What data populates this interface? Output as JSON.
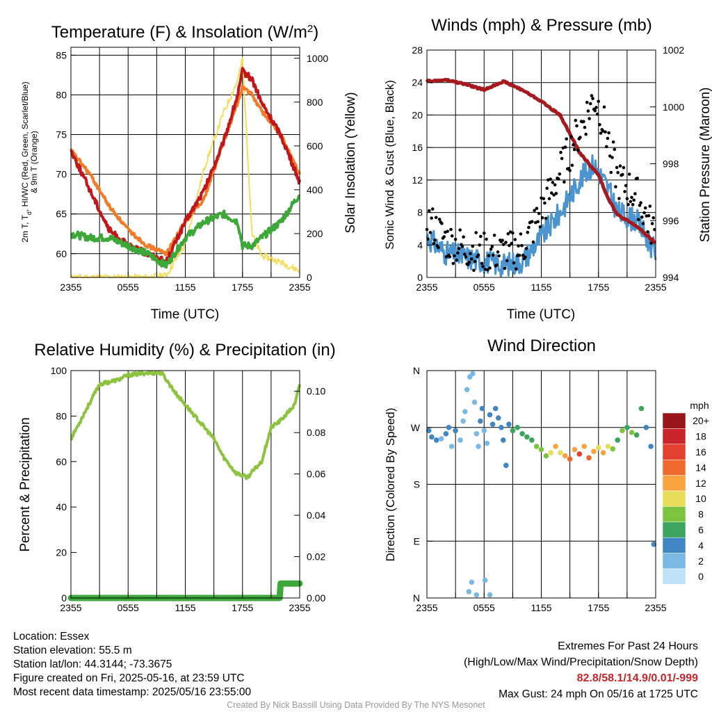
{
  "colors": {
    "red": "#c0171b",
    "dark_red": "#a01018",
    "orange": "#f07b28",
    "green": "#3da83a",
    "yellow": "#f5dc5a",
    "blue": "#4a94d0",
    "maroon": "#a5191f",
    "black": "#000000",
    "humidity": "#8cc43f",
    "precip": "#3da83a"
  },
  "charts": {
    "temperature": {
      "title": "Temperature (F) & Insolation (W/m²)",
      "xlabel": "Time (UTC)",
      "ylabel_left": "2m T, Td, HI/WC (Red, Green, Scarlet/Blue) & 9m T (Orange)",
      "ylabel_left_line1": "2m T, T",
      "ylabel_left_sub": "d",
      "ylabel_left_line1_rest": ", HI/WC (Red, Green, Scarlet/Blue)",
      "ylabel_left_line2": "& 9m T (Orange)",
      "ylabel_right": "Solar Insolation (Yellow)"
    },
    "winds": {
      "title": "Winds (mph) & Pressure (mb)",
      "xlabel": "Time (UTC)",
      "ylabel_left": "Sonic Wind & Gust (Blue, Black)",
      "ylabel_right": "Station Pressure (Maroon)"
    },
    "humidity": {
      "title": "Relative Humidity (%) & Precipitation (in)",
      "ylabel_left": "Percent & Precipitation"
    },
    "direction": {
      "title": "Wind Direction",
      "ylabel_left": "Direction (Colored By Speed)",
      "legend_title": "mph"
    }
  },
  "chart_data": [
    {
      "type": "line",
      "title": "Temperature (F) & Insolation (W/m2)",
      "xlabel": "Time (UTC)",
      "ylabel": "2m T, Td, HI/WC (Red, Green, Scarlet/Blue) & 9m T (Orange)",
      "y2label": "Solar Insolation (Yellow)",
      "x_hours": [
        0,
        2,
        4,
        6,
        8,
        10,
        12,
        14,
        16,
        17.5,
        18,
        19,
        20,
        22,
        24
      ],
      "x_ticks": [
        "2355",
        "0555",
        "1155",
        "1755",
        "2355"
      ],
      "ylim": [
        57,
        86
      ],
      "y_ticks": [
        60,
        65,
        70,
        75,
        80,
        85
      ],
      "y2lim": [
        0,
        1050
      ],
      "y2_ticks": [
        0,
        200,
        400,
        600,
        800,
        1000
      ],
      "series": [
        {
          "name": "2m T (Red)",
          "axis": "left",
          "color": "#c0171b",
          "values": [
            73,
            68,
            63,
            61,
            60,
            59,
            64,
            68,
            74,
            80,
            83,
            82,
            79,
            75,
            69
          ]
        },
        {
          "name": "9m T (Orange)",
          "axis": "left",
          "color": "#f07b28",
          "values": [
            73,
            70,
            66,
            63,
            61,
            60,
            64,
            67,
            74,
            79,
            81,
            80,
            78,
            75,
            70
          ]
        },
        {
          "name": "2m Td (Green)",
          "axis": "left",
          "color": "#3da83a",
          "values": [
            62.5,
            62,
            62,
            61,
            60,
            58.5,
            62,
            64,
            65,
            64,
            61,
            61,
            62,
            64,
            67.5
          ]
        },
        {
          "name": "Solar Insolation (Yellow)",
          "axis": "right",
          "color": "#f5dc5a",
          "values": [
            0,
            0,
            0,
            0,
            0,
            10,
            150,
            500,
            750,
            900,
            1000,
            200,
            100,
            70,
            30
          ]
        }
      ]
    },
    {
      "type": "line",
      "title": "Winds (mph) & Pressure (mb)",
      "xlabel": "Time (UTC)",
      "ylabel": "Sonic Wind & Gust (Blue, Black)",
      "y2label": "Station Pressure (Maroon)",
      "x_hours": [
        0,
        2,
        4,
        6,
        8,
        10,
        12,
        14,
        16,
        17.5,
        18,
        19,
        20,
        22,
        24
      ],
      "x_ticks": [
        "2355",
        "0555",
        "1155",
        "1755",
        "2355"
      ],
      "ylim": [
        0,
        28
      ],
      "y_ticks": [
        0,
        4,
        8,
        12,
        16,
        20,
        24,
        28
      ],
      "y2lim": [
        994,
        1002
      ],
      "y2_ticks": [
        994,
        996,
        998,
        1000,
        1002
      ],
      "series": [
        {
          "name": "Sonic Wind (Blue)",
          "axis": "left",
          "color": "#4a94d0",
          "values": [
            5,
            3,
            2.5,
            2,
            1.5,
            2,
            5,
            8,
            12,
            14,
            13,
            11,
            8,
            7,
            3
          ]
        },
        {
          "name": "Gust (Black)",
          "axis": "left",
          "color": "#000000",
          "markers": true,
          "values": [
            7,
            4.5,
            3.5,
            3,
            3,
            3.5,
            8,
            13,
            18,
            22,
            21,
            17,
            12,
            10,
            5
          ]
        },
        {
          "name": "Station Pressure (Maroon)",
          "axis": "right",
          "color": "#a5191f",
          "values": [
            1000.9,
            1000.95,
            1000.8,
            1000.6,
            1000.9,
            1000.6,
            1000.2,
            999.7,
            998.4,
            997.8,
            997.6,
            996.8,
            996.2,
            995.8,
            995.2
          ]
        }
      ]
    },
    {
      "type": "line",
      "title": "Relative Humidity (%) & Precipitation (in)",
      "ylabel": "Percent & Precipitation",
      "x_hours": [
        0,
        1,
        3,
        5,
        6,
        8,
        9.5,
        11,
        13,
        15,
        16,
        17.3,
        18.5,
        20,
        21,
        22,
        23.5,
        24
      ],
      "x_ticks": [
        "2355",
        "0555",
        "1155",
        "1755",
        "2355"
      ],
      "ylim": [
        0,
        100
      ],
      "y_ticks": [
        0,
        20,
        40,
        60,
        80,
        100
      ],
      "y2lim": [
        0,
        0.11
      ],
      "y2_ticks": [
        "0.00",
        "0.02",
        "0.04",
        "0.06",
        "0.08",
        "0.10"
      ],
      "series": [
        {
          "name": "Relative Humidity",
          "axis": "left",
          "color": "#8cc43f",
          "values": [
            70,
            78,
            94,
            96,
            98,
            99,
            99,
            90,
            80,
            70,
            62,
            55,
            53,
            60,
            75,
            78,
            85,
            94
          ]
        },
        {
          "name": "Precipitation",
          "axis": "right",
          "color": "#3da83a",
          "x_hours": [
            0,
            21.9,
            22,
            24
          ],
          "values": [
            0,
            0,
            0.007,
            0.007
          ]
        }
      ]
    },
    {
      "type": "scatter",
      "title": "Wind Direction",
      "ylabel": "Direction (Colored By Speed)",
      "x_ticks": [
        "2355",
        "0555",
        "1155",
        "1755",
        "2355"
      ],
      "y_ticks": [
        "N",
        "E",
        "S",
        "W",
        "N"
      ],
      "ylim": [
        0,
        360
      ],
      "colorbar": {
        "title": "mph",
        "labels": [
          "20+",
          "18",
          "16",
          "14",
          "12",
          "10",
          "8",
          "6",
          "4",
          "2",
          "0"
        ],
        "colors": [
          "#99151c",
          "#c8242a",
          "#e3402f",
          "#f06a2e",
          "#f8a33f",
          "#e8dd59",
          "#7cc43d",
          "#3ca45f",
          "#3f86c3",
          "#7ab9e3",
          "#bfe3f6"
        ]
      },
      "points": [
        [
          0.2,
          265,
          4
        ],
        [
          0.5,
          255,
          4
        ],
        [
          1,
          250,
          4
        ],
        [
          1.5,
          252,
          2
        ],
        [
          2,
          260,
          4
        ],
        [
          2.3,
          270,
          4
        ],
        [
          2.6,
          240,
          2
        ],
        [
          3,
          265,
          4
        ],
        [
          3.5,
          250,
          2
        ],
        [
          3.8,
          280,
          2
        ],
        [
          4,
          295,
          2
        ],
        [
          4.2,
          330,
          2
        ],
        [
          4.5,
          350,
          2
        ],
        [
          4.8,
          355,
          2
        ],
        [
          5,
          310,
          2
        ],
        [
          5.2,
          260,
          2
        ],
        [
          5.4,
          240,
          2
        ],
        [
          5.6,
          280,
          4
        ],
        [
          5.8,
          300,
          4
        ],
        [
          6,
          265,
          2
        ],
        [
          6.3,
          245,
          2
        ],
        [
          6.6,
          290,
          4
        ],
        [
          6.9,
          275,
          4
        ],
        [
          7.2,
          300,
          4
        ],
        [
          7.5,
          285,
          4
        ],
        [
          7.8,
          270,
          4
        ],
        [
          8,
          250,
          4
        ],
        [
          8.3,
          210,
          4
        ],
        [
          8.6,
          275,
          4
        ],
        [
          9,
          265,
          6
        ],
        [
          9.5,
          270,
          6
        ],
        [
          10,
          260,
          6
        ],
        [
          10.5,
          255,
          6
        ],
        [
          11,
          250,
          6
        ],
        [
          11.5,
          240,
          8
        ],
        [
          12,
          235,
          8
        ],
        [
          12.5,
          225,
          8
        ],
        [
          13,
          230,
          10
        ],
        [
          13.5,
          240,
          12
        ],
        [
          14,
          230,
          10
        ],
        [
          14.5,
          225,
          12
        ],
        [
          15,
          220,
          14
        ],
        [
          15.5,
          235,
          12
        ],
        [
          16,
          228,
          16
        ],
        [
          16.5,
          240,
          12
        ],
        [
          17,
          222,
          14
        ],
        [
          17.5,
          232,
          12
        ],
        [
          18,
          238,
          10
        ],
        [
          18.5,
          230,
          12
        ],
        [
          19,
          240,
          10
        ],
        [
          19.5,
          236,
          8
        ],
        [
          20,
          250,
          6
        ],
        [
          20.5,
          265,
          8
        ],
        [
          21,
          270,
          6
        ],
        [
          21.5,
          262,
          8
        ],
        [
          22,
          258,
          6
        ],
        [
          22.5,
          300,
          6
        ],
        [
          23,
          270,
          4
        ],
        [
          23.5,
          240,
          4
        ],
        [
          23.8,
          85,
          4
        ],
        [
          4.4,
          10,
          2
        ],
        [
          4.7,
          25,
          2
        ],
        [
          5.2,
          5,
          2
        ],
        [
          6.1,
          28,
          2
        ],
        [
          6.6,
          5,
          2
        ]
      ]
    }
  ],
  "footer": {
    "location": "Location: Essex",
    "elevation": "Station elevation: 55.5 m",
    "latlon": "Station lat/lon: 44.3144; -73.3675",
    "created": "Figure created on Fri, 2025-05-16, at 23:59 UTC",
    "recent": "Most recent data timestamp: 2025/05/16 23:55:00",
    "extremes_title": "Extremes For Past 24 Hours",
    "extremes_subtitle": "(High/Low/Max Wind/Precipitation/Snow Depth)",
    "extremes_values": "82.8/58.1/14.9/0.01/-999",
    "max_gust": "Max Gust: 24 mph On 05/16 at 1725 UTC",
    "credit": "Created By Nick Bassill Using Data Provided By The NYS Mesonet"
  }
}
